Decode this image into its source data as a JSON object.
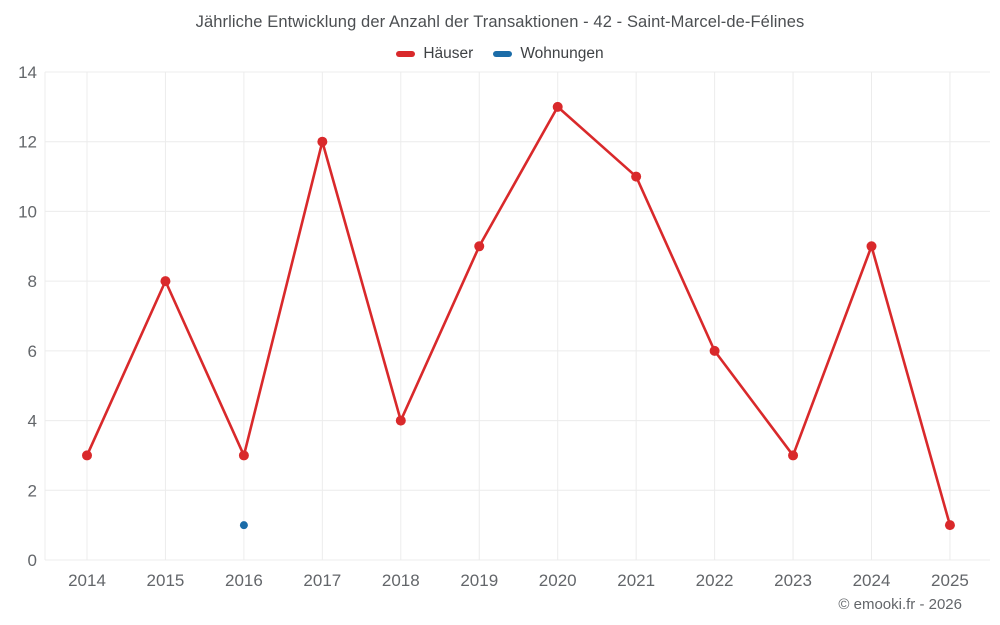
{
  "header": {
    "title": "Jährliche Entwicklung der Anzahl der Transaktionen - 42 - Saint-Marcel-de-Félines"
  },
  "legend": {
    "items": [
      {
        "label": "Häuser",
        "color": "#d9292b"
      },
      {
        "label": "Wohnungen",
        "color": "#1b6ca8"
      }
    ]
  },
  "footer": {
    "copyright": "© emooki.fr - 2026"
  },
  "chart_data": {
    "type": "line",
    "title": "Jährliche Entwicklung der Anzahl der Transaktionen - 42 - Saint-Marcel-de-Félines",
    "categories": [
      "2014",
      "2015",
      "2016",
      "2017",
      "2018",
      "2019",
      "2020",
      "2021",
      "2022",
      "2023",
      "2024",
      "2025"
    ],
    "series": [
      {
        "name": "Häuser",
        "key": "haeuser",
        "color": "#d9292b",
        "values": [
          3,
          8,
          3,
          12,
          4,
          9,
          13,
          11,
          6,
          3,
          9,
          1
        ],
        "point_radius": 5,
        "line_width": 2.6
      },
      {
        "name": "Wohnungen",
        "key": "wohnungen",
        "color": "#1b6ca8",
        "values": [
          null,
          null,
          1,
          null,
          null,
          null,
          null,
          null,
          null,
          null,
          null,
          null
        ],
        "point_radius": 4,
        "line_width": 2.6
      }
    ],
    "xlabel": "",
    "ylabel": "",
    "ylim": [
      0,
      14
    ],
    "ytick_step": 2,
    "yticks": [
      0,
      2,
      4,
      6,
      8,
      10,
      12,
      14
    ],
    "grid": true,
    "legend_position": "top",
    "grid_color": "#ececec",
    "tick_label_color": "#63666a"
  }
}
